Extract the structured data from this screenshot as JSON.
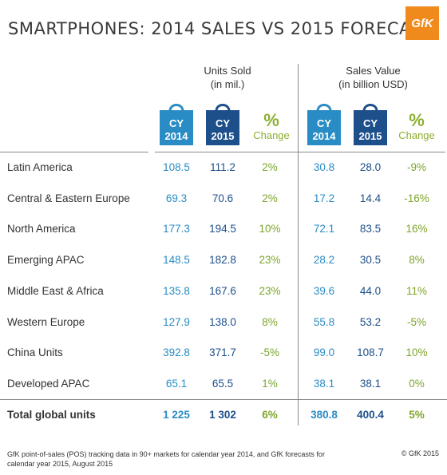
{
  "title": "SMARTPHONES: 2014 SALES VS 2015 FORECAST",
  "logo": "GfK",
  "headers": {
    "units_line1": "Units Sold",
    "units_line2": "(in mil.)",
    "value_line1": "Sales Value",
    "value_line2": "(in billion USD)",
    "cy_label": "CY",
    "year_2014": "2014",
    "year_2015": "2015",
    "pct_symbol": "%",
    "pct_word": "Change"
  },
  "colors": {
    "bag_2014": "#2a8cc4",
    "bag_2015": "#1d4f8a",
    "change": "#8cb030"
  },
  "chart_data": {
    "type": "table",
    "title": "SMARTPHONES: 2014 SALES VS 2015 FORECAST",
    "columns": [
      "Units Sold CY 2014",
      "Units Sold CY 2015",
      "Units % Change",
      "Sales Value CY 2014",
      "Sales Value CY 2015",
      "Sales Value % Change"
    ],
    "rows": [
      {
        "region": "Latin America",
        "u14": "108.5",
        "u15": "111.2",
        "uchg": "2%",
        "v14": "30.8",
        "v15": "28.0",
        "vchg": "-9%"
      },
      {
        "region": "Central & Eastern Europe",
        "u14": "69.3",
        "u15": "70.6",
        "uchg": "2%",
        "v14": "17.2",
        "v15": "14.4",
        "vchg": "-16%"
      },
      {
        "region": "North America",
        "u14": "177.3",
        "u15": "194.5",
        "uchg": "10%",
        "v14": "72.1",
        "v15": "83.5",
        "vchg": "16%"
      },
      {
        "region": "Emerging APAC",
        "u14": "148.5",
        "u15": "182.8",
        "uchg": "23%",
        "v14": "28.2",
        "v15": "30.5",
        "vchg": "8%"
      },
      {
        "region": "Middle East & Africa",
        "u14": "135.8",
        "u15": "167.6",
        "uchg": "23%",
        "v14": "39.6",
        "v15": "44.0",
        "vchg": "11%"
      },
      {
        "region": "Western Europe",
        "u14": "127.9",
        "u15": "138.0",
        "uchg": "8%",
        "v14": "55.8",
        "v15": "53.2",
        "vchg": "-5%"
      },
      {
        "region": "China Units",
        "u14": "392.8",
        "u15": "371.7",
        "uchg": "-5%",
        "v14": "99.0",
        "v15": "108.7",
        "vchg": "10%"
      },
      {
        "region": "Developed APAC",
        "u14": "65.1",
        "u15": "65.5",
        "uchg": "1%",
        "v14": "38.1",
        "v15": "38.1",
        "vchg": "0%"
      }
    ],
    "total": {
      "region": "Total global units",
      "u14": "1 225",
      "u15": "1 302",
      "uchg": "6%",
      "v14": "380.8",
      "v15": "400.4",
      "vchg": "5%"
    }
  },
  "footer": "GfK point-of-sales (POS) tracking data in 90+ markets for calendar year 2014, and GfK forecasts for calendar year 2015, August 2015",
  "copyright": "© GfK 2015"
}
